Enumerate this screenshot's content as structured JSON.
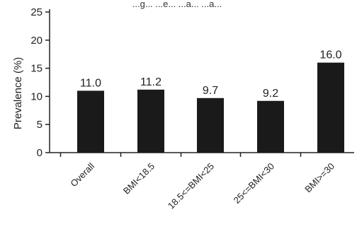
{
  "chart_data": {
    "type": "bar",
    "title": "...g... ...e... ...a... ...a...",
    "categories": [
      "Overall",
      "BMI<18.5",
      "18.5<=BMI<25",
      "25<=BMI<30",
      "BMI>=30"
    ],
    "values": [
      11.0,
      11.2,
      9.7,
      9.2,
      16.0
    ],
    "data_labels": [
      "11.0",
      "11.2",
      "9.7",
      "9.2",
      "16.0"
    ],
    "ylabel": "Prevalence (%)",
    "xlabel": "",
    "ylim": [
      0,
      25
    ],
    "yticks": [
      0,
      5,
      10,
      15,
      20,
      25
    ],
    "grid": false,
    "bar_color": "#1a1a1a"
  }
}
